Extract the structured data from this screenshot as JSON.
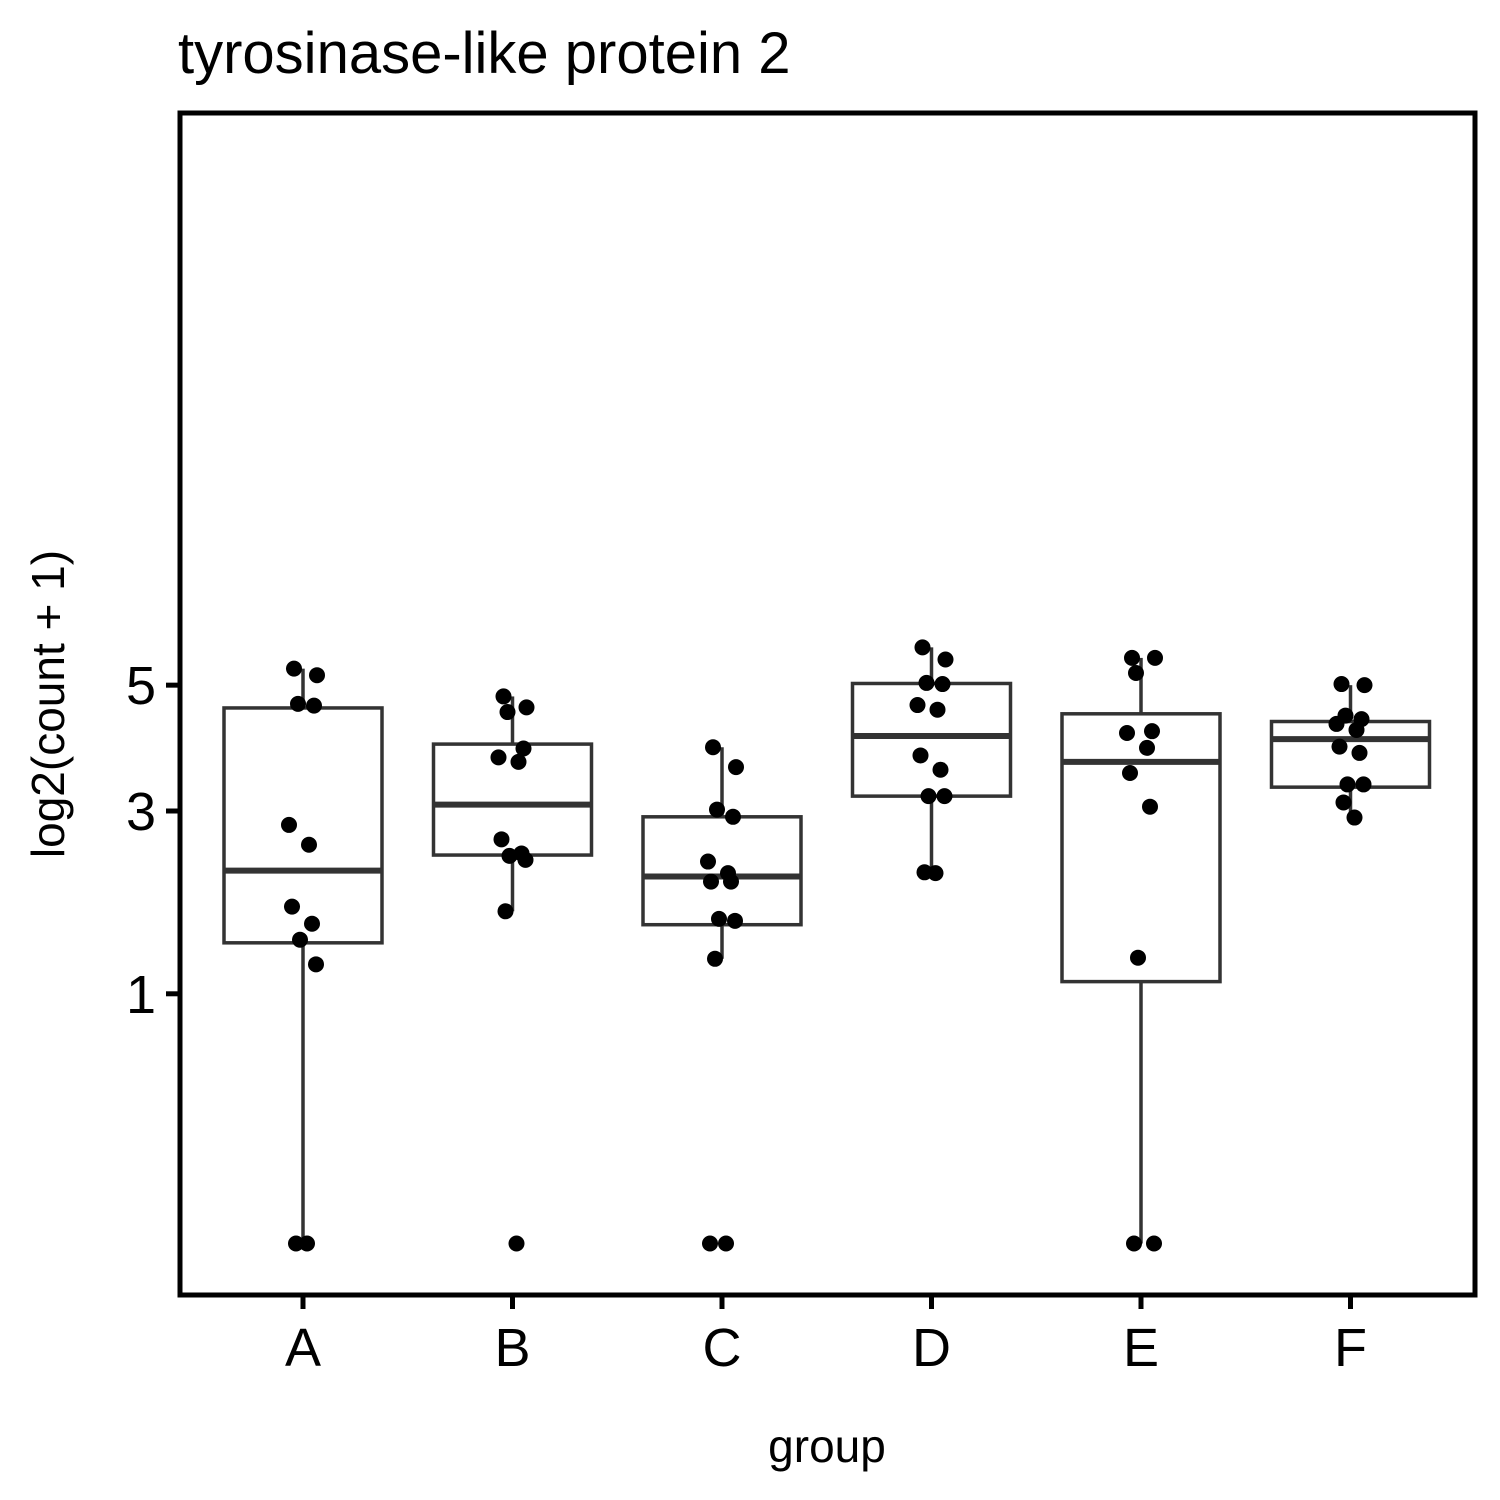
{
  "chart_data": {
    "type": "boxplot",
    "title": "tyrosinase-like protein 2",
    "xlabel": "group",
    "ylabel": "log2(count + 1)",
    "y_scale": "sqrt",
    "ylim": [
      0,
      6.1
    ],
    "y_ticks": [
      1,
      3,
      5
    ],
    "categories": [
      "A",
      "B",
      "C",
      "D",
      "E",
      "F"
    ],
    "grid": false,
    "legend": "none",
    "boxes": [
      {
        "group": "A",
        "lower_whisker": 0,
        "q1": 1.45,
        "median": 2.23,
        "q3": 4.6,
        "upper_whisker": 5.3
      },
      {
        "group": "B",
        "lower_whisker": 1.77,
        "q1": 2.42,
        "median": 3.09,
        "q3": 4.0,
        "upper_whisker": 4.8
      },
      {
        "group": "C",
        "lower_whisker": 1.3,
        "q1": 1.63,
        "median": 2.16,
        "q3": 2.92,
        "upper_whisker": 3.95
      },
      {
        "group": "D",
        "lower_whisker": 2.21,
        "q1": 3.21,
        "median": 4.13,
        "q3": 5.03,
        "upper_whisker": 5.7
      },
      {
        "group": "E",
        "lower_whisker": 0,
        "q1": 1.1,
        "median": 3.72,
        "q3": 4.5,
        "upper_whisker": 5.5
      },
      {
        "group": "F",
        "lower_whisker": 2.91,
        "q1": 3.34,
        "median": 4.08,
        "q3": 4.37,
        "upper_whisker": 5.0
      }
    ],
    "points": [
      {
        "group": "A",
        "values": [
          5.3,
          5.18,
          4.67,
          4.64,
          2.81,
          2.55,
          1.82,
          1.64,
          1.48,
          1.25,
          0.0,
          0.0
        ]
      },
      {
        "group": "B",
        "values": [
          4.8,
          4.61,
          4.53,
          3.93,
          3.79,
          3.72,
          2.62,
          2.44,
          2.41,
          2.36,
          1.77,
          0.0
        ]
      },
      {
        "group": "C",
        "values": [
          3.95,
          3.64,
          3.02,
          2.92,
          2.34,
          2.2,
          2.1,
          2.1,
          1.69,
          1.67,
          1.3,
          0.0,
          0.0
        ]
      },
      {
        "group": "D",
        "values": [
          5.7,
          5.47,
          5.04,
          5.02,
          4.65,
          4.57,
          3.82,
          3.6,
          3.21,
          3.21,
          2.21,
          2.2
        ]
      },
      {
        "group": "E",
        "values": [
          5.5,
          5.5,
          5.22,
          4.21,
          4.18,
          3.94,
          3.55,
          3.06,
          1.31,
          0.0,
          0.0
        ]
      },
      {
        "group": "F",
        "values": [
          5.02,
          5.0,
          4.47,
          4.41,
          4.33,
          4.23,
          3.96,
          3.86,
          3.38,
          3.38,
          3.12,
          2.91
        ]
      }
    ]
  }
}
